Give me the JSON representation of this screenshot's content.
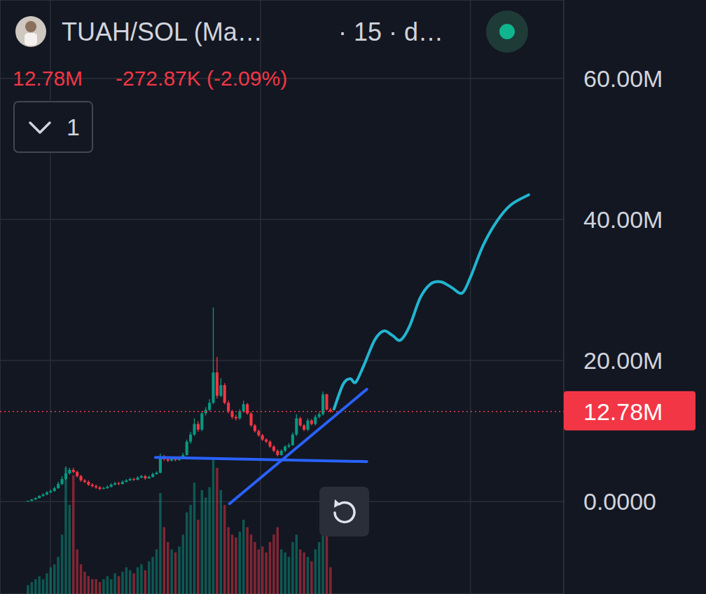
{
  "chart_data": {
    "type": "candlestick",
    "title": "TUAH/SOL (Ma…",
    "subtitle": "· 15 · d…",
    "change_label": "-272.87K (-2.09%)",
    "indicator_label": "1",
    "last_price": {
      "value": 12780000,
      "label": "12.78M"
    },
    "xlim": [
      -7.4,
      141.7
    ],
    "xticks": [
      5.9,
      61.5,
      117
    ],
    "ylim": [
      -13100000,
      71100000
    ],
    "yticks": [
      {
        "value": 0,
        "label": "0.0000"
      },
      {
        "value": 20000000,
        "label": "20.00M"
      },
      {
        "value": 40000000,
        "label": "40.00M"
      },
      {
        "value": 60000000,
        "label": "60.00M"
      }
    ],
    "y2lim": [
      0,
      400
    ],
    "grid": true,
    "tick_labels": "y",
    "x": [
      0,
      1,
      2,
      3,
      4,
      5,
      6,
      7,
      8,
      9,
      10,
      11,
      12,
      13,
      14,
      15,
      16,
      17,
      18,
      19,
      20,
      21,
      22,
      23,
      24,
      25,
      26,
      27,
      28,
      29,
      30,
      31,
      32,
      33,
      34,
      35,
      36,
      37,
      38,
      39,
      40,
      41,
      42,
      43,
      44,
      45,
      46,
      47,
      48,
      49,
      50,
      51,
      52,
      53,
      54,
      55,
      56,
      57,
      58,
      59,
      60,
      61,
      62,
      63,
      64,
      65,
      66,
      67,
      68,
      69,
      70,
      71,
      72,
      73,
      74,
      75,
      76,
      77,
      78,
      79,
      80
    ],
    "series": [
      {
        "type": "candlestick",
        "open": [
          50000,
          100000,
          300000,
          500000,
          800000,
          1000000,
          1300000,
          1500000,
          1900000,
          2500000,
          3200000,
          4000000,
          4500000,
          4200000,
          3600000,
          3000000,
          2800000,
          2400000,
          2200000,
          2000000,
          1800000,
          1900000,
          2100000,
          2400000,
          2600000,
          2500000,
          2800000,
          3000000,
          3200000,
          3100000,
          3400000,
          3600000,
          3300000,
          3500000,
          3900000,
          4100000,
          6300000,
          6000000,
          5800000,
          6100000,
          5900000,
          6200000,
          6600000,
          8500000,
          9500000,
          11000000,
          10200000,
          12500000,
          13000000,
          14000000,
          18300000,
          15000000,
          16500000,
          14000000,
          12800000,
          12000000,
          11800000,
          12800000,
          13800000,
          12500000,
          10800000,
          10000000,
          9400000,
          8800000,
          8500000,
          7800000,
          7200000,
          6600000,
          7200000,
          7800000,
          8000000,
          9500000,
          11800000,
          10800000,
          10200000,
          11500000,
          11000000,
          12000000,
          12400000,
          15200000,
          13050000
        ],
        "high": [
          150000,
          400000,
          600000,
          900000,
          1200000,
          1500000,
          1700000,
          2100000,
          2800000,
          3600000,
          5000000,
          4800000,
          4800000,
          4400000,
          3800000,
          3200000,
          3000000,
          2600000,
          2400000,
          2200000,
          2100000,
          2300000,
          2600000,
          2800000,
          2800000,
          3000000,
          3200000,
          3400000,
          3400000,
          3600000,
          3800000,
          3800000,
          3700000,
          4100000,
          4300000,
          6800000,
          6600000,
          6300000,
          6300000,
          6300000,
          6400000,
          6900000,
          8800000,
          9900000,
          11800000,
          11400000,
          12800000,
          13400000,
          14500000,
          27500000,
          20500000,
          17500000,
          16800000,
          14300000,
          13000000,
          12300000,
          13100000,
          14300000,
          14000000,
          12700000,
          11000000,
          10200000,
          9600000,
          9000000,
          8700000,
          8000000,
          7400000,
          7400000,
          8000000,
          8300000,
          9800000,
          12400000,
          12000000,
          11000000,
          11800000,
          11700000,
          12300000,
          12700000,
          15600000,
          15300000,
          13300000
        ],
        "low": [
          0,
          50000,
          250000,
          450000,
          700000,
          900000,
          1200000,
          1400000,
          1800000,
          2300000,
          3000000,
          3800000,
          4000000,
          3400000,
          2800000,
          2600000,
          2200000,
          2000000,
          1800000,
          1600000,
          1700000,
          1800000,
          2000000,
          2300000,
          2300000,
          2400000,
          2700000,
          2900000,
          2900000,
          3000000,
          3300000,
          3100000,
          3200000,
          3400000,
          3800000,
          4000000,
          5800000,
          5600000,
          5700000,
          5700000,
          5800000,
          6000000,
          6500000,
          8200000,
          9300000,
          9900000,
          10000000,
          12200000,
          12800000,
          13800000,
          14600000,
          14800000,
          13800000,
          12500000,
          11700000,
          11500000,
          11600000,
          12600000,
          12300000,
          10600000,
          9800000,
          9200000,
          8600000,
          8300000,
          7600000,
          7000000,
          6400000,
          6500000,
          7000000,
          7600000,
          7900000,
          9300000,
          10600000,
          10000000,
          10000000,
          10800000,
          10800000,
          11800000,
          12200000,
          12900000,
          12600000
        ],
        "close": [
          100000,
          300000,
          500000,
          800000,
          1000000,
          1300000,
          1500000,
          1900000,
          2500000,
          3200000,
          4000000,
          4500000,
          4200000,
          3600000,
          3000000,
          2800000,
          2400000,
          2200000,
          2000000,
          1800000,
          1900000,
          2100000,
          2400000,
          2600000,
          2500000,
          2800000,
          3000000,
          3200000,
          3100000,
          3400000,
          3600000,
          3300000,
          3500000,
          3900000,
          4100000,
          6300000,
          6000000,
          5800000,
          6100000,
          5900000,
          6200000,
          6600000,
          8500000,
          9500000,
          11000000,
          10200000,
          12500000,
          13000000,
          14000000,
          18300000,
          15000000,
          16500000,
          14000000,
          12800000,
          12000000,
          11800000,
          12800000,
          13800000,
          12500000,
          10800000,
          10000000,
          9400000,
          8800000,
          8500000,
          7800000,
          7200000,
          6600000,
          7200000,
          7800000,
          8000000,
          9500000,
          11800000,
          10800000,
          10200000,
          11500000,
          11000000,
          12000000,
          12400000,
          15200000,
          13050000,
          12780000
        ]
      },
      {
        "type": "bar",
        "axis": "y2",
        "values": [
          6,
          8,
          10,
          12,
          10,
          14,
          18,
          20,
          25,
          40,
          85,
          60,
          80,
          30,
          20,
          15,
          12,
          10,
          10,
          8,
          10,
          12,
          10,
          14,
          12,
          15,
          18,
          16,
          14,
          18,
          20,
          16,
          22,
          25,
          30,
          68,
          45,
          35,
          30,
          28,
          32,
          40,
          55,
          60,
          75,
          50,
          70,
          65,
          72,
          91,
          85,
          70,
          60,
          45,
          40,
          38,
          42,
          50,
          45,
          40,
          35,
          30,
          32,
          28,
          35,
          40,
          45,
          30,
          28,
          25,
          35,
          40,
          30,
          28,
          25,
          22,
          30,
          35,
          45,
          40,
          18
        ]
      },
      {
        "type": "line",
        "color": "#2962ff",
        "line_style": "solid",
        "x": [
          33.7,
          89.6
        ],
        "values": [
          6270000,
          5670000
        ]
      },
      {
        "type": "line",
        "color": "#2962ff",
        "line_style": "solid",
        "x": [
          53.3,
          89.6
        ],
        "values": [
          -300000,
          15920000
        ]
      },
      {
        "type": "line",
        "color": "#22b5d0",
        "line_style": "smooth",
        "x": [
          80.93,
          83.33,
          85.19,
          86.67,
          88.89,
          91.67,
          94.07,
          96.3,
          98.52,
          100.93,
          103.7,
          106.48,
          109.26,
          112.04,
          114.81,
          117.04,
          120.37,
          124.07,
          127.78,
          132.41
        ],
        "values": [
          13130000,
          16620000,
          17410000,
          16920000,
          19400000,
          22890000,
          24180000,
          23580000,
          22890000,
          24880000,
          28860000,
          30850000,
          31140000,
          30350000,
          29550000,
          31840000,
          36320000,
          39800000,
          42090000,
          43480000
        ]
      }
    ]
  }
}
